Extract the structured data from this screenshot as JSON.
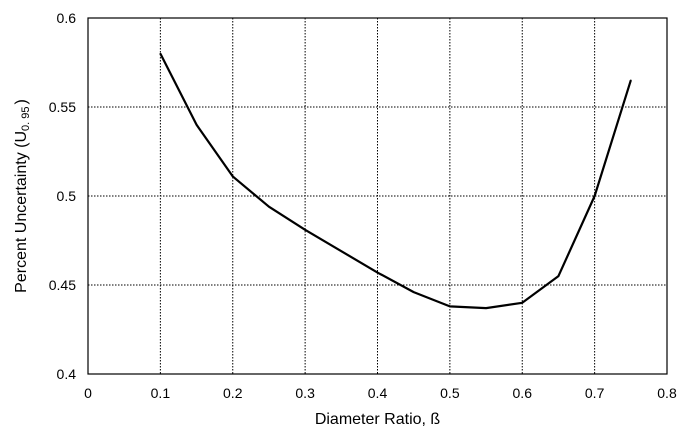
{
  "chart_data": {
    "type": "line",
    "title": "",
    "xlabel": "Diameter Ratio, ß",
    "ylabel": "Percent Uncertainty (U",
    "ylabel_subscript": "0. 95",
    "ylabel_suffix": ")",
    "xlim": [
      0,
      0.8
    ],
    "ylim": [
      0.4,
      0.6
    ],
    "x_ticks": [
      0,
      0.1,
      0.2,
      0.3,
      0.4,
      0.5,
      0.6,
      0.7,
      0.8
    ],
    "x_tick_labels": [
      "0",
      "0.1",
      "0.2",
      "0.3",
      "0.4",
      "0.5",
      "0.6",
      "0.7",
      "0.8"
    ],
    "y_ticks": [
      0.4,
      0.45,
      0.5,
      0.55,
      0.6
    ],
    "y_tick_labels": [
      "0.4",
      "0.45",
      "0.5",
      "0.55",
      "0.6"
    ],
    "grid": true,
    "series": [
      {
        "x": [
          0.1,
          0.15,
          0.2,
          0.25,
          0.3,
          0.35,
          0.4,
          0.45,
          0.5,
          0.55,
          0.6,
          0.65,
          0.7,
          0.75
        ],
        "y": [
          0.58,
          0.54,
          0.511,
          0.494,
          0.481,
          0.469,
          0.457,
          0.446,
          0.438,
          0.437,
          0.44,
          0.455,
          0.5,
          0.565
        ]
      }
    ],
    "line_color": "#000000",
    "grid_color": "#000000"
  }
}
